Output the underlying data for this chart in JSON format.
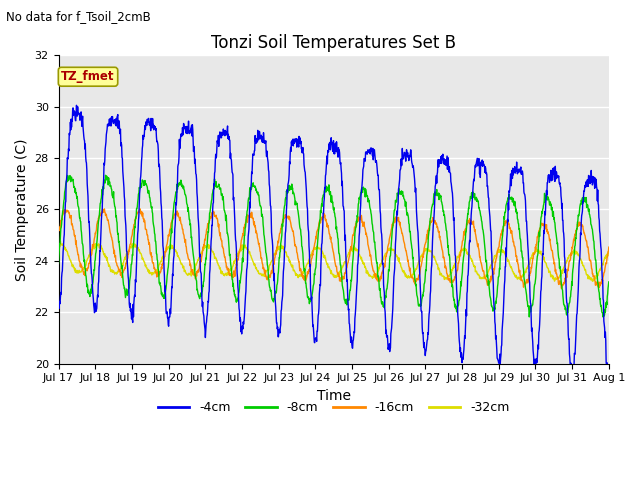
{
  "title": "Tonzi Soil Temperatures Set B",
  "subtitle": "No data for f_Tsoil_2cmB",
  "xlabel": "Time",
  "ylabel": "Soil Temperature (C)",
  "ylim": [
    20,
    32
  ],
  "yticks": [
    20,
    22,
    24,
    26,
    28,
    30,
    32
  ],
  "colors": {
    "4cm": "#0000EE",
    "8cm": "#00CC00",
    "16cm": "#FF8800",
    "32cm": "#DDDD00"
  },
  "labels": [
    "-4cm",
    "-8cm",
    "-16cm",
    "-32cm"
  ],
  "tz_fmet_color": "#AA0000",
  "tz_fmet_bg": "#FFFF99",
  "tz_fmet_edge": "#999900",
  "background_color": "#E8E8E8",
  "grid_color": "#FFFFFF",
  "n_days": 15,
  "pts_per_day": 96,
  "x_tick_labels": [
    "Jul 17",
    "Jul 18",
    "Jul 19",
    "Jul 20",
    "Jul 21",
    "Jul 22",
    "Jul 23",
    "Jul 24",
    "Jul 25",
    "Jul 26",
    "Jul 27",
    "Jul 28",
    "Jul 29",
    "Jul 30",
    "Jul 31",
    "Aug 1"
  ],
  "figsize": [
    6.4,
    4.8
  ],
  "dpi": 100
}
